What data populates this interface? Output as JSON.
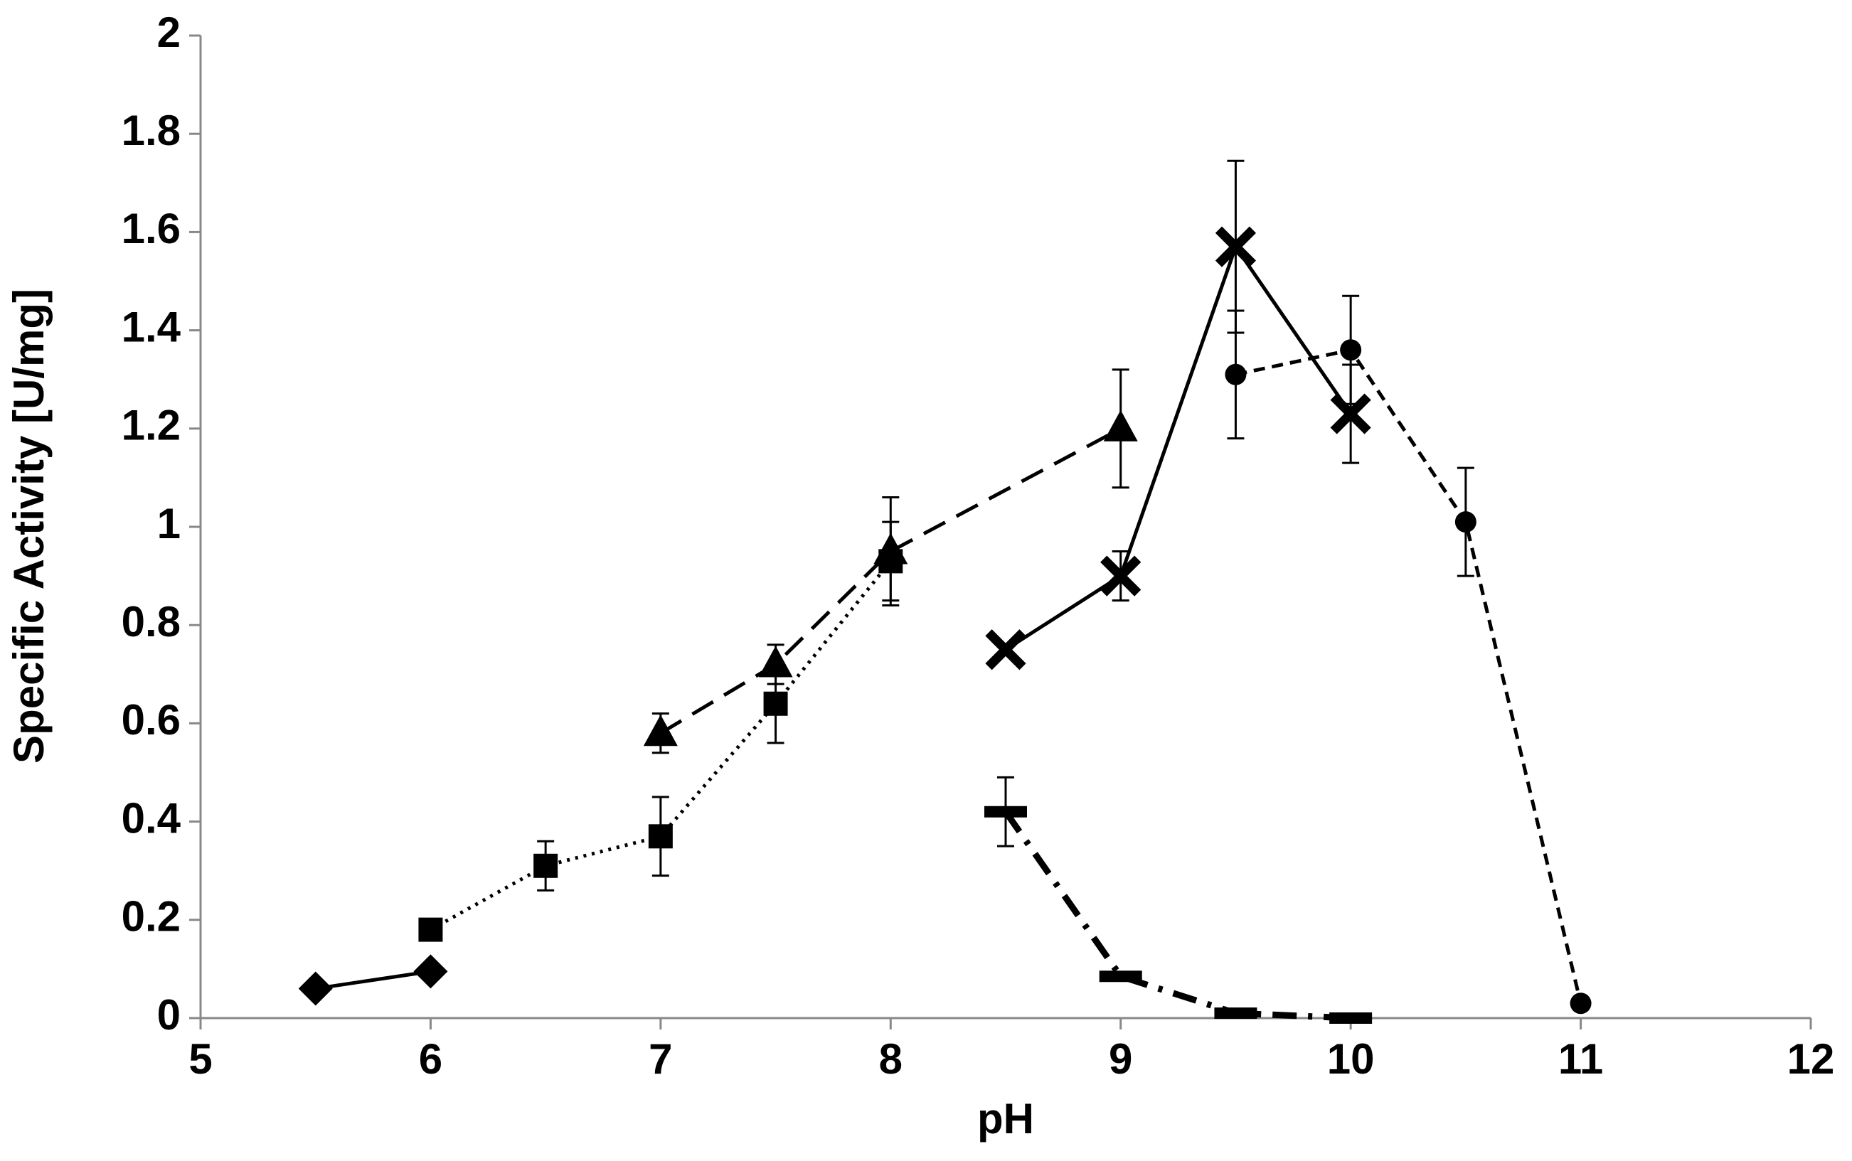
{
  "chart_data": {
    "type": "line",
    "x_label": "pH",
    "y_label": "Specific Activity [U/mg]",
    "xlim": [
      5,
      12
    ],
    "xticks": [
      5,
      6,
      7,
      8,
      9,
      10,
      11,
      12
    ],
    "ylim": [
      0,
      2
    ],
    "yticks": [
      0,
      0.2,
      0.4,
      0.6,
      0.8,
      1,
      1.2,
      1.4,
      1.6,
      1.8,
      2
    ],
    "series": [
      {
        "color": "#000000",
        "marker": "diamond",
        "dash": "solid",
        "x": [
          5.5,
          6
        ],
        "values": [
          0.06,
          0.095
        ],
        "errors": [
          null,
          null
        ]
      },
      {
        "color": "#000000",
        "marker": "square",
        "dash": "dotted",
        "x": [
          6,
          6.5,
          7,
          7.5,
          8
        ],
        "values": [
          0.18,
          0.31,
          0.37,
          0.64,
          0.93
        ],
        "errors": [
          null,
          0.05,
          0.08,
          0.08,
          0.08
        ]
      },
      {
        "color": "#000000",
        "marker": "triangle",
        "dash": "dashed",
        "x": [
          7,
          7.5,
          8,
          9
        ],
        "values": [
          0.58,
          0.72,
          0.95,
          1.2
        ],
        "errors": [
          0.04,
          0.04,
          0.11,
          0.12
        ]
      },
      {
        "color": "#000000",
        "marker": "cross",
        "dash": "solid",
        "x": [
          8.5,
          9,
          9.5,
          10
        ],
        "values": [
          0.75,
          0.9,
          1.57,
          1.23
        ],
        "errors": [
          null,
          0.05,
          0.175,
          0.1
        ]
      },
      {
        "color": "#000000",
        "marker": "dash",
        "dash": "dashdot",
        "x": [
          8.5,
          9,
          9.5,
          10
        ],
        "values": [
          0.42,
          0.085,
          0.01,
          0.0
        ],
        "errors": [
          0.07,
          null,
          null,
          null
        ]
      },
      {
        "color": "#000000",
        "marker": "circle",
        "dash": "shortdash",
        "x": [
          9.5,
          10,
          10.5,
          11
        ],
        "values": [
          1.31,
          1.36,
          1.01,
          0.03
        ],
        "errors": [
          0.13,
          0.11,
          0.11,
          null
        ]
      }
    ]
  }
}
